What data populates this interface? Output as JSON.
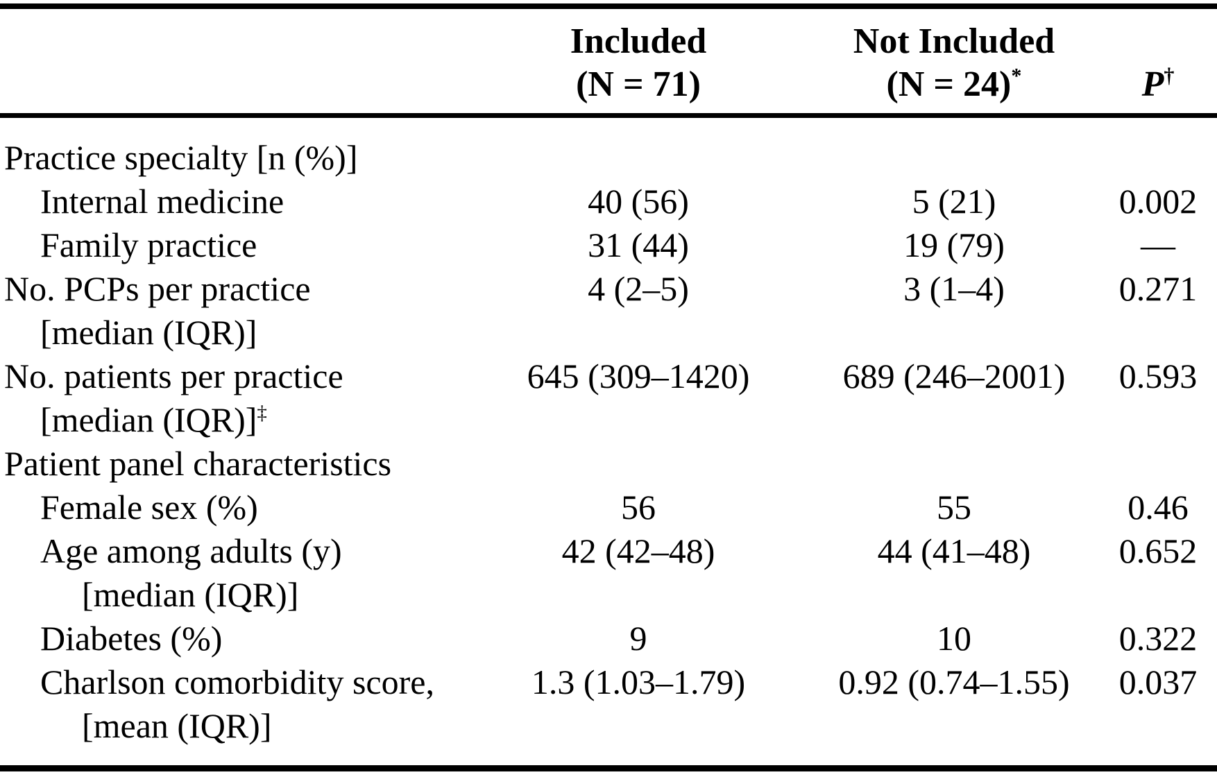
{
  "table": {
    "header": {
      "included_line1": "Included",
      "included_line2": "(N = 71)",
      "not_included_line1": "Not Included",
      "not_included_line2": "(N = 24)",
      "not_included_footnote": "*",
      "p_label": "P",
      "p_footnote": "†"
    },
    "rows": [
      {
        "label": "Practice specialty [n (%)]",
        "indent": 0,
        "included": "",
        "not_included": "",
        "p": ""
      },
      {
        "label": "Internal medicine",
        "indent": 1,
        "included": "40 (56)",
        "not_included": "5 (21)",
        "p": "0.002"
      },
      {
        "label": "Family practice",
        "indent": 1,
        "included": "31 (44)",
        "not_included": "19 (79)",
        "p": "—"
      },
      {
        "label": "No. PCPs per practice",
        "label2": "[median (IQR)]",
        "label2_footnote": "",
        "indent": 0,
        "label2_indent": 1,
        "included": "4 (2–5)",
        "not_included": "3 (1–4)",
        "p": "0.271"
      },
      {
        "label": "No. patients per practice",
        "label2": "[median (IQR)]",
        "label2_footnote": "‡",
        "indent": 0,
        "label2_indent": 1,
        "included": "645 (309–1420)",
        "not_included": "689 (246–2001)",
        "p": "0.593"
      },
      {
        "label": "Patient panel characteristics",
        "indent": 0,
        "included": "",
        "not_included": "",
        "p": ""
      },
      {
        "label": "Female sex (%)",
        "indent": 1,
        "included": "56",
        "not_included": "55",
        "p": "0.46"
      },
      {
        "label": "Age among adults (y)",
        "label2": "[median (IQR)]",
        "label2_footnote": "",
        "indent": 1,
        "label2_indent": 2,
        "included": "42 (42–48)",
        "not_included": "44 (41–48)",
        "p": "0.652"
      },
      {
        "label": "Diabetes (%)",
        "indent": 1,
        "included": "9",
        "not_included": "10",
        "p": "0.322"
      },
      {
        "label": "Charlson comorbidity score,",
        "label2": "[mean (IQR)]",
        "label2_footnote": "",
        "indent": 1,
        "label2_indent": 2,
        "included": "1.3 (1.03–1.79)",
        "not_included": "0.92 (0.74–1.55)",
        "p": "0.037"
      }
    ]
  }
}
